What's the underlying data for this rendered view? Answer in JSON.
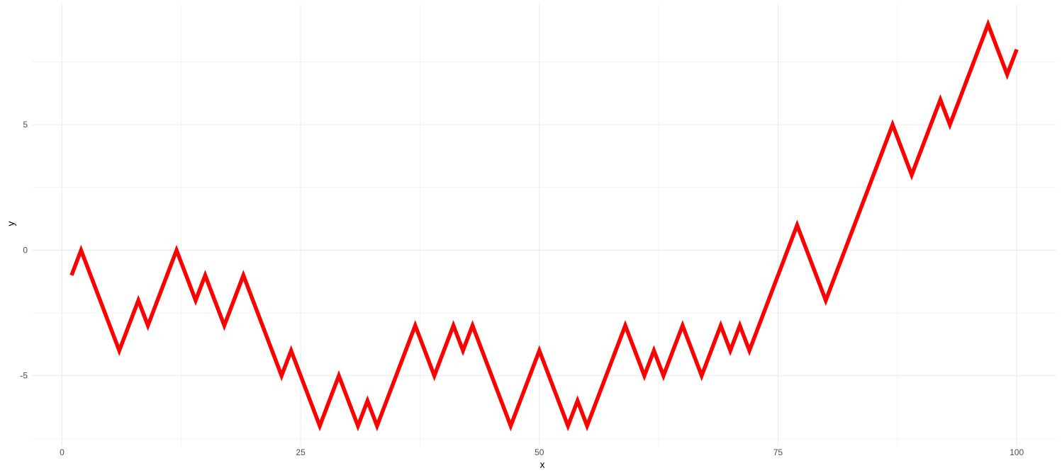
{
  "chart_data": {
    "type": "line",
    "title": "",
    "xlabel": "x",
    "ylabel": "y",
    "xlim": [
      -3.15,
      104.15
    ],
    "ylim": [
      -7.8,
      9.8
    ],
    "grid": true,
    "legend": "none",
    "colors": {
      "line": "#ff0000",
      "grid": "#ebebeb",
      "tick_text": "#4d4d4d",
      "axis_title": "#000000"
    },
    "x_ticks": [
      {
        "value": 0,
        "label": "0"
      },
      {
        "value": 25,
        "label": "25"
      },
      {
        "value": 50,
        "label": "50"
      },
      {
        "value": 75,
        "label": "75"
      },
      {
        "value": 100,
        "label": "100"
      }
    ],
    "y_ticks": [
      {
        "value": -5,
        "label": "-5"
      },
      {
        "value": 0,
        "label": "0"
      },
      {
        "value": 5,
        "label": "5"
      }
    ],
    "x_minor": [
      12.5,
      37.5,
      62.5,
      87.5
    ],
    "y_minor": [
      -7.5,
      -2.5,
      2.5,
      7.5
    ],
    "series": [
      {
        "x": [
          1,
          2,
          3,
          4,
          5,
          6,
          7,
          8,
          9,
          10,
          11,
          12,
          13,
          14,
          15,
          16,
          17,
          18,
          19,
          20,
          21,
          22,
          23,
          24,
          25,
          26,
          27,
          28,
          29,
          30,
          31,
          32,
          33,
          34,
          35,
          36,
          37,
          38,
          39,
          40,
          41,
          42,
          43,
          44,
          45,
          46,
          47,
          48,
          49,
          50,
          51,
          52,
          53,
          54,
          55,
          56,
          57,
          58,
          59,
          60,
          61,
          62,
          63,
          64,
          65,
          66,
          67,
          68,
          69,
          70,
          71,
          72,
          73,
          74,
          75,
          76,
          77,
          78,
          79,
          80,
          81,
          82,
          83,
          84,
          85,
          86,
          87,
          88,
          89,
          90,
          91,
          92,
          93,
          94,
          95,
          96,
          97,
          98,
          99,
          100
        ],
        "values": [
          -1,
          0,
          -1,
          -2,
          -3,
          -4,
          -3,
          -2,
          -3,
          -2,
          -1,
          0,
          -1,
          -2,
          -1,
          -2,
          -3,
          -2,
          -1,
          -2,
          -3,
          -4,
          -5,
          -4,
          -5,
          -6,
          -7,
          -6,
          -5,
          -6,
          -7,
          -6,
          -7,
          -6,
          -5,
          -4,
          -3,
          -4,
          -5,
          -4,
          -3,
          -4,
          -3,
          -4,
          -5,
          -6,
          -7,
          -6,
          -5,
          -4,
          -5,
          -6,
          -7,
          -6,
          -7,
          -6,
          -5,
          -4,
          -3,
          -4,
          -5,
          -4,
          -5,
          -4,
          -3,
          -4,
          -5,
          -4,
          -3,
          -4,
          -3,
          -4,
          -3,
          -2,
          -1,
          0,
          1,
          0,
          -1,
          -2,
          -1,
          0,
          1,
          2,
          3,
          4,
          5,
          4,
          3,
          4,
          5,
          6,
          5,
          6,
          7,
          8,
          9,
          8,
          7,
          8
        ]
      }
    ]
  }
}
